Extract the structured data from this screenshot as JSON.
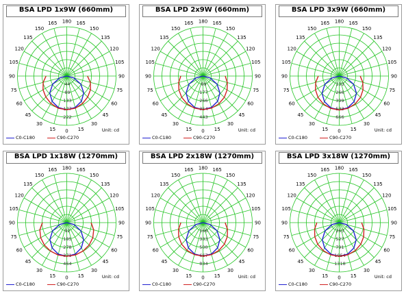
{
  "chart_data": [
    {
      "type": "polar",
      "title": "BSA LPD 1x9W (660mm)",
      "angle_labels": [
        "0",
        "15",
        "30",
        "45",
        "60",
        "75",
        "90",
        "105",
        "120",
        "135",
        "150",
        "165",
        "180"
      ],
      "radial_labels": [
        "44",
        "89",
        "133",
        "177",
        "222"
      ],
      "rmax": 222,
      "unit": "Unit: cd",
      "series": [
        {
          "name": "C0-C180",
          "color": "#1f1fd0",
          "angles": [
            0,
            15,
            30,
            45,
            60,
            75,
            90
          ],
          "values": [
            182,
            176,
            158,
            130,
            88,
            40,
            0
          ]
        },
        {
          "name": "C90-C270",
          "color": "#d01f1f",
          "angles": [
            0,
            15,
            30,
            45,
            60,
            75,
            90
          ],
          "values": [
            182,
            180,
            171,
            160,
            148,
            132,
            112
          ]
        }
      ]
    },
    {
      "type": "polar",
      "title": "BSA LPD 2x9W (660mm)",
      "angle_labels": [
        "0",
        "15",
        "30",
        "45",
        "60",
        "75",
        "90",
        "105",
        "120",
        "135",
        "150",
        "165",
        "180"
      ],
      "radial_labels": [
        "89",
        "177",
        "266",
        "354",
        "443"
      ],
      "rmax": 443,
      "unit": "Unit: cd",
      "series": [
        {
          "name": "C0-C180",
          "color": "#1f1fd0",
          "angles": [
            0,
            15,
            30,
            45,
            60,
            75,
            90
          ],
          "values": [
            362,
            350,
            315,
            258,
            175,
            80,
            0
          ]
        },
        {
          "name": "C90-C270",
          "color": "#d01f1f",
          "angles": [
            0,
            15,
            30,
            45,
            60,
            75,
            90
          ],
          "values": [
            362,
            358,
            345,
            325,
            300,
            272,
            240
          ]
        }
      ]
    },
    {
      "type": "polar",
      "title": "BSA LPD 3x9W (660mm)",
      "angle_labels": [
        "0",
        "15",
        "30",
        "45",
        "60",
        "75",
        "90",
        "105",
        "120",
        "135",
        "150",
        "165",
        "180"
      ],
      "radial_labels": [
        "133",
        "266",
        "399",
        "533",
        "666"
      ],
      "rmax": 666,
      "unit": "Unit: cd",
      "series": [
        {
          "name": "C0-C180",
          "color": "#1f1fd0",
          "angles": [
            0,
            15,
            30,
            45,
            60,
            75,
            90
          ],
          "values": [
            550,
            532,
            480,
            395,
            270,
            125,
            0
          ]
        },
        {
          "name": "C90-C270",
          "color": "#d01f1f",
          "angles": [
            0,
            15,
            30,
            45,
            60,
            75,
            90
          ],
          "values": [
            550,
            542,
            520,
            488,
            445,
            395,
            340
          ]
        }
      ]
    },
    {
      "type": "polar",
      "title": "BSA LPD 1x18W (1270mm)",
      "angle_labels": [
        "0",
        "15",
        "30",
        "45",
        "60",
        "75",
        "90",
        "105",
        "120",
        "135",
        "150",
        "165",
        "180"
      ],
      "radial_labels": [
        "92",
        "185",
        "278",
        "371",
        "464"
      ],
      "rmax": 464,
      "unit": "Unit: cd",
      "series": [
        {
          "name": "C0-C180",
          "color": "#1f1fd0",
          "angles": [
            0,
            15,
            30,
            45,
            60,
            75,
            90
          ],
          "values": [
            380,
            368,
            330,
            270,
            185,
            85,
            0
          ]
        },
        {
          "name": "C90-C270",
          "color": "#d01f1f",
          "angles": [
            0,
            15,
            30,
            45,
            60,
            75,
            90
          ],
          "values": [
            380,
            378,
            370,
            358,
            340,
            315,
            275
          ]
        }
      ]
    },
    {
      "type": "polar",
      "title": "BSA LPD 2x18W (1270mm)",
      "angle_labels": [
        "0",
        "15",
        "30",
        "45",
        "60",
        "75",
        "90",
        "105",
        "120",
        "135",
        "150",
        "165",
        "180"
      ],
      "radial_labels": [
        "166",
        "333",
        "500",
        "667",
        "834"
      ],
      "rmax": 834,
      "unit": "Unit: cd",
      "series": [
        {
          "name": "C0-C180",
          "color": "#1f1fd0",
          "angles": [
            0,
            15,
            30,
            45,
            60,
            75,
            90
          ],
          "values": [
            680,
            660,
            592,
            485,
            330,
            150,
            0
          ]
        },
        {
          "name": "C90-C270",
          "color": "#d01f1f",
          "angles": [
            0,
            15,
            30,
            45,
            60,
            75,
            90
          ],
          "values": [
            680,
            672,
            650,
            615,
            570,
            515,
            450
          ]
        }
      ]
    },
    {
      "type": "polar",
      "title": "BSA LPD 3x18W (1270mm)",
      "angle_labels": [
        "0",
        "15",
        "30",
        "45",
        "60",
        "75",
        "90",
        "105",
        "120",
        "135",
        "150",
        "165",
        "180"
      ],
      "radial_labels": [
        "263",
        "527",
        "791",
        "1054",
        "1318"
      ],
      "rmax": 1318,
      "unit": "Unit: cd",
      "series": [
        {
          "name": "C0-C180",
          "color": "#1f1fd0",
          "angles": [
            0,
            15,
            30,
            45,
            60,
            75,
            90
          ],
          "values": [
            1080,
            1045,
            940,
            770,
            525,
            240,
            0
          ]
        },
        {
          "name": "C90-C270",
          "color": "#d01f1f",
          "angles": [
            0,
            15,
            30,
            45,
            60,
            75,
            90
          ],
          "values": [
            1080,
            1068,
            1032,
            978,
            905,
            820,
            720
          ]
        }
      ]
    }
  ]
}
